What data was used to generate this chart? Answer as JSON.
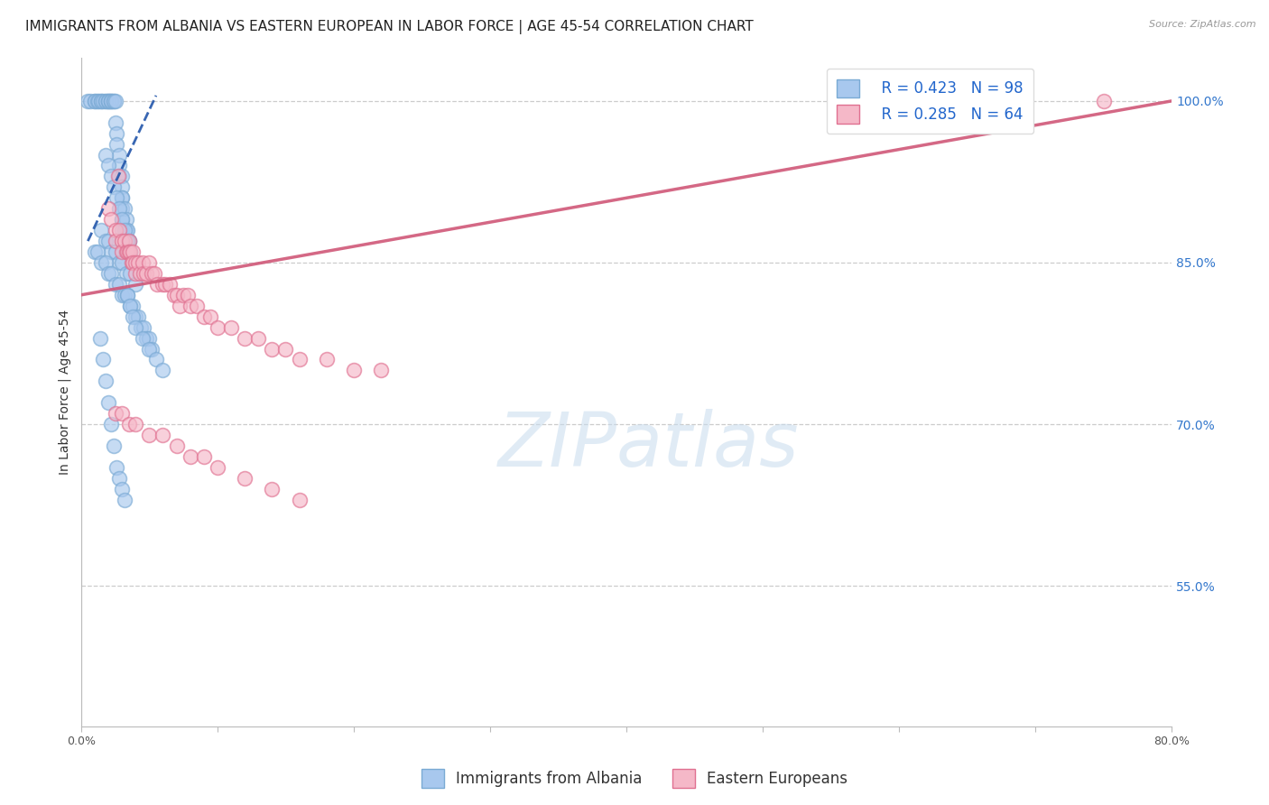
{
  "title": "IMMIGRANTS FROM ALBANIA VS EASTERN EUROPEAN IN LABOR FORCE | AGE 45-54 CORRELATION CHART",
  "source": "Source: ZipAtlas.com",
  "ylabel": "In Labor Force | Age 45-54",
  "xlim": [
    0.0,
    0.8
  ],
  "ylim": [
    0.42,
    1.04
  ],
  "yticks_right": [
    1.0,
    0.85,
    0.7,
    0.55
  ],
  "yticklabels_right": [
    "100.0%",
    "85.0%",
    "70.0%",
    "55.0%"
  ],
  "legend_blue_label": "  R = 0.423   N = 98",
  "legend_pink_label": "  R = 0.285   N = 64",
  "watermark": "ZIPatlas",
  "legend_bottom_blue": "Immigrants from Albania",
  "legend_bottom_pink": "Eastern Europeans",
  "blue_color": "#A8C8EE",
  "blue_edge_color": "#7AAAD4",
  "blue_line_color": "#2255AA",
  "pink_color": "#F5B8C8",
  "pink_edge_color": "#E07090",
  "pink_line_color": "#D05878",
  "title_fontsize": 11,
  "axis_label_fontsize": 10,
  "tick_fontsize": 9,
  "legend_fontsize": 12,
  "watermark_fontsize": 60,
  "background_color": "#FFFFFF",
  "grid_color": "#CCCCCC",
  "albania_x": [
    0.005,
    0.007,
    0.01,
    0.01,
    0.012,
    0.013,
    0.015,
    0.015,
    0.016,
    0.018,
    0.018,
    0.02,
    0.02,
    0.02,
    0.022,
    0.022,
    0.022,
    0.024,
    0.024,
    0.025,
    0.025,
    0.026,
    0.026,
    0.028,
    0.028,
    0.028,
    0.03,
    0.03,
    0.03,
    0.03,
    0.03,
    0.03,
    0.03,
    0.032,
    0.033,
    0.033,
    0.034,
    0.035,
    0.035,
    0.036,
    0.018,
    0.02,
    0.022,
    0.024,
    0.026,
    0.028,
    0.03,
    0.032,
    0.034,
    0.036,
    0.015,
    0.018,
    0.02,
    0.022,
    0.025,
    0.028,
    0.03,
    0.033,
    0.036,
    0.04,
    0.01,
    0.012,
    0.015,
    0.018,
    0.02,
    0.022,
    0.025,
    0.028,
    0.03,
    0.032,
    0.034,
    0.036,
    0.038,
    0.04,
    0.042,
    0.044,
    0.046,
    0.048,
    0.05,
    0.052,
    0.014,
    0.016,
    0.018,
    0.02,
    0.022,
    0.024,
    0.026,
    0.028,
    0.03,
    0.032,
    0.034,
    0.036,
    0.038,
    0.04,
    0.045,
    0.05,
    0.055,
    0.06
  ],
  "albania_y": [
    1.0,
    1.0,
    1.0,
    1.0,
    1.0,
    1.0,
    1.0,
    1.0,
    1.0,
    1.0,
    1.0,
    1.0,
    1.0,
    1.0,
    1.0,
    1.0,
    1.0,
    1.0,
    1.0,
    1.0,
    0.98,
    0.97,
    0.96,
    0.95,
    0.94,
    0.93,
    0.93,
    0.92,
    0.91,
    0.91,
    0.9,
    0.89,
    0.88,
    0.9,
    0.89,
    0.88,
    0.88,
    0.87,
    0.87,
    0.86,
    0.95,
    0.94,
    0.93,
    0.92,
    0.91,
    0.9,
    0.89,
    0.88,
    0.87,
    0.86,
    0.88,
    0.87,
    0.87,
    0.86,
    0.86,
    0.85,
    0.85,
    0.84,
    0.84,
    0.83,
    0.86,
    0.86,
    0.85,
    0.85,
    0.84,
    0.84,
    0.83,
    0.83,
    0.82,
    0.82,
    0.82,
    0.81,
    0.81,
    0.8,
    0.8,
    0.79,
    0.79,
    0.78,
    0.78,
    0.77,
    0.78,
    0.76,
    0.74,
    0.72,
    0.7,
    0.68,
    0.66,
    0.65,
    0.64,
    0.63,
    0.82,
    0.81,
    0.8,
    0.79,
    0.78,
    0.77,
    0.76,
    0.75
  ],
  "eastern_x": [
    0.02,
    0.022,
    0.025,
    0.025,
    0.027,
    0.028,
    0.03,
    0.03,
    0.032,
    0.033,
    0.034,
    0.035,
    0.035,
    0.036,
    0.037,
    0.038,
    0.038,
    0.04,
    0.04,
    0.042,
    0.043,
    0.045,
    0.046,
    0.048,
    0.05,
    0.052,
    0.054,
    0.056,
    0.06,
    0.062,
    0.065,
    0.068,
    0.07,
    0.072,
    0.075,
    0.078,
    0.08,
    0.085,
    0.09,
    0.095,
    0.1,
    0.11,
    0.12,
    0.13,
    0.14,
    0.15,
    0.16,
    0.18,
    0.2,
    0.22,
    0.025,
    0.03,
    0.035,
    0.04,
    0.05,
    0.06,
    0.07,
    0.08,
    0.09,
    0.1,
    0.12,
    0.14,
    0.16,
    0.75
  ],
  "eastern_y": [
    0.9,
    0.89,
    0.88,
    0.87,
    0.93,
    0.88,
    0.87,
    0.86,
    0.87,
    0.86,
    0.86,
    0.87,
    0.86,
    0.86,
    0.85,
    0.86,
    0.85,
    0.85,
    0.84,
    0.85,
    0.84,
    0.85,
    0.84,
    0.84,
    0.85,
    0.84,
    0.84,
    0.83,
    0.83,
    0.83,
    0.83,
    0.82,
    0.82,
    0.81,
    0.82,
    0.82,
    0.81,
    0.81,
    0.8,
    0.8,
    0.79,
    0.79,
    0.78,
    0.78,
    0.77,
    0.77,
    0.76,
    0.76,
    0.75,
    0.75,
    0.71,
    0.71,
    0.7,
    0.7,
    0.69,
    0.69,
    0.68,
    0.67,
    0.67,
    0.66,
    0.65,
    0.64,
    0.63,
    1.0
  ],
  "blue_trend_x": [
    0.005,
    0.055
  ],
  "blue_trend_y": [
    0.87,
    1.005
  ],
  "pink_trend_x": [
    0.0,
    0.8
  ],
  "pink_trend_y": [
    0.82,
    1.0
  ]
}
